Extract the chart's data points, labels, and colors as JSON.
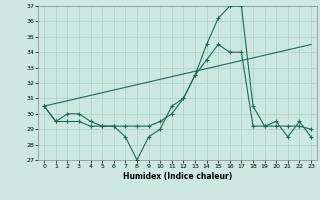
{
  "xlabel": "Humidex (Indice chaleur)",
  "xlim": [
    -0.5,
    23.5
  ],
  "ylim": [
    27,
    37
  ],
  "yticks": [
    27,
    28,
    29,
    30,
    31,
    32,
    33,
    34,
    35,
    36,
    37
  ],
  "xticks": [
    0,
    1,
    2,
    3,
    4,
    5,
    6,
    7,
    8,
    9,
    10,
    11,
    12,
    13,
    14,
    15,
    16,
    17,
    18,
    19,
    20,
    21,
    22,
    23
  ],
  "bg_color": "#cce8e0",
  "grid_color": "#aad0c8",
  "line_color": "#1a6b5a",
  "line1_x": [
    0,
    1,
    2,
    3,
    4,
    5,
    6,
    7,
    8,
    9,
    10,
    11,
    12,
    13,
    14,
    15,
    16,
    17,
    18,
    19,
    20,
    21,
    22,
    23
  ],
  "line1_y": [
    30.5,
    29.5,
    30.0,
    30.0,
    29.5,
    29.2,
    29.2,
    28.5,
    27.0,
    28.5,
    29.0,
    30.5,
    31.0,
    32.5,
    34.5,
    36.2,
    37.0,
    37.0,
    30.5,
    29.2,
    29.5,
    28.5,
    29.5,
    28.5
  ],
  "line2_x": [
    0,
    1,
    2,
    3,
    4,
    5,
    6,
    7,
    8,
    9,
    10,
    11,
    12,
    13,
    14,
    15,
    16,
    17,
    18,
    19,
    20,
    21,
    22,
    23
  ],
  "line2_y": [
    30.5,
    29.5,
    29.5,
    29.5,
    29.2,
    29.2,
    29.2,
    29.2,
    29.2,
    29.2,
    29.5,
    30.0,
    31.0,
    32.5,
    33.5,
    34.5,
    34.0,
    34.0,
    29.2,
    29.2,
    29.2,
    29.2,
    29.2,
    29.0
  ],
  "line3_x": [
    0,
    23
  ],
  "line3_y": [
    30.5,
    34.5
  ]
}
